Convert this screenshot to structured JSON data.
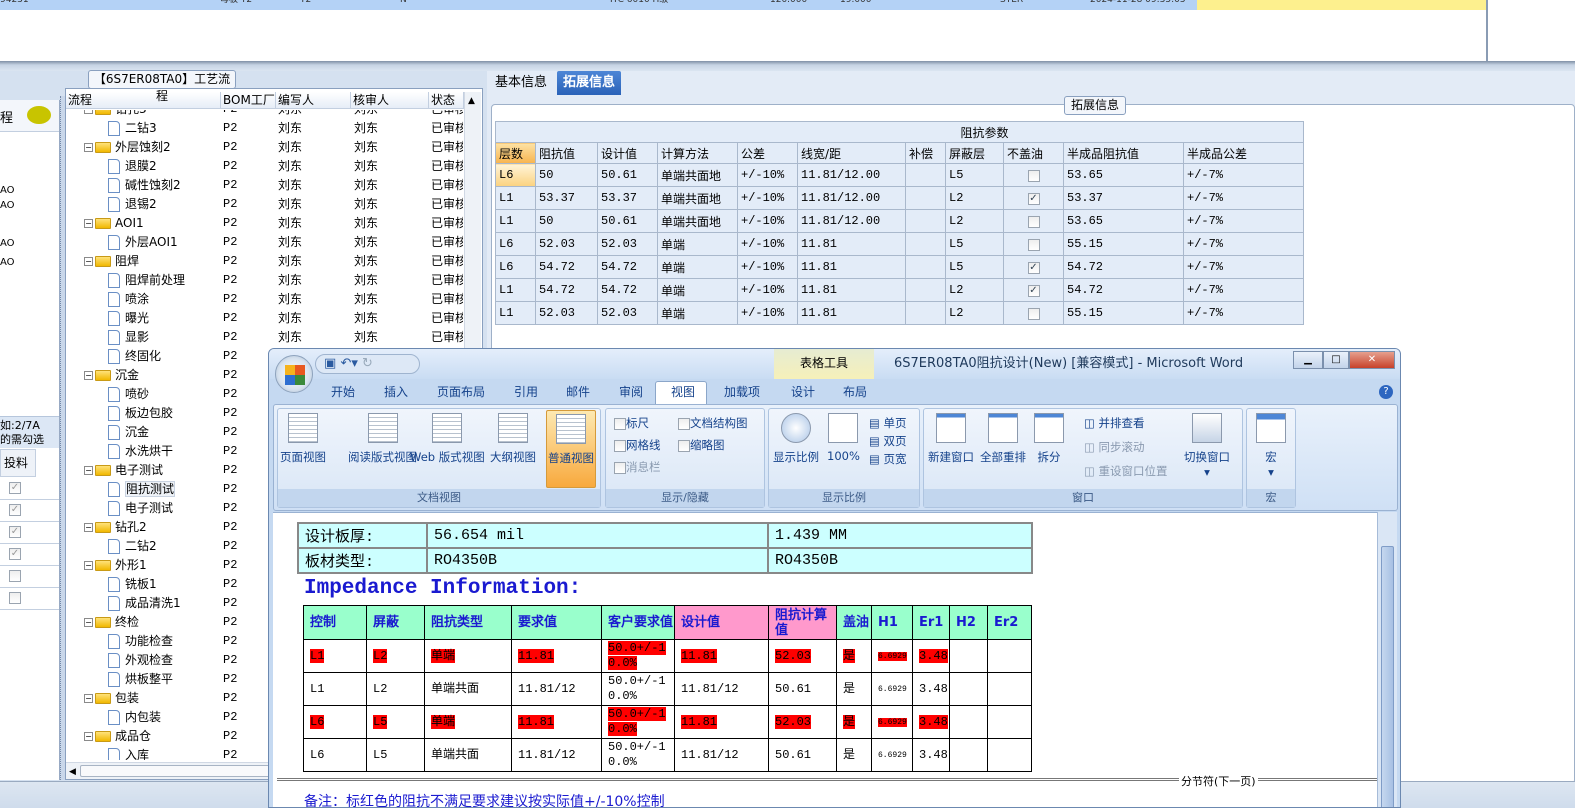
{
  "top_row": {
    "cells": [
      "94231",
      "母板 T2",
      "T2",
      "N",
      "ITC 6010 H级",
      "120.000",
      "19.000",
      "STER",
      "2024-11-28 09:35:05"
    ]
  },
  "left_panel": {
    "title_fragment": "程",
    "items": [
      "AO",
      "AO",
      "AO",
      "AO"
    ],
    "hint_line1": "如:2/7A",
    "hint_line2": "的需勾选",
    "column": "投料",
    "checks": [
      true,
      true,
      true,
      true,
      false,
      false
    ]
  },
  "process_panel": {
    "title": "【6S7ER08TA0】工艺流程",
    "columns": [
      "流程",
      "BOM工厂",
      "编写人",
      "核审人",
      "状态"
    ],
    "rows": [
      {
        "name": "钻孔3",
        "type": "folder",
        "bom": "P2",
        "writer": "刘东",
        "reviewer": "刘东",
        "status": "已审核"
      },
      {
        "name": "二钻3",
        "type": "leaf",
        "bom": "P2",
        "writer": "刘东",
        "reviewer": "刘东",
        "status": "已审核"
      },
      {
        "name": "外层蚀刻2",
        "type": "folder",
        "bom": "P2",
        "writer": "刘东",
        "reviewer": "刘东",
        "status": "已审核"
      },
      {
        "name": "退膜2",
        "type": "leaf",
        "bom": "P2",
        "writer": "刘东",
        "reviewer": "刘东",
        "status": "已审核"
      },
      {
        "name": "碱性蚀刻2",
        "type": "leaf",
        "bom": "P2",
        "writer": "刘东",
        "reviewer": "刘东",
        "status": "已审核"
      },
      {
        "name": "退锡2",
        "type": "leaf",
        "bom": "P2",
        "writer": "刘东",
        "reviewer": "刘东",
        "status": "已审核"
      },
      {
        "name": "AOI1",
        "type": "folder",
        "bom": "P2",
        "writer": "刘东",
        "reviewer": "刘东",
        "status": "已审核"
      },
      {
        "name": "外层AOI1",
        "type": "leaf",
        "bom": "P2",
        "writer": "刘东",
        "reviewer": "刘东",
        "status": "已审核"
      },
      {
        "name": "阻焊",
        "type": "folder",
        "bom": "P2",
        "writer": "刘东",
        "reviewer": "刘东",
        "status": "已审核"
      },
      {
        "name": "阻焊前处理",
        "type": "leaf",
        "bom": "P2",
        "writer": "刘东",
        "reviewer": "刘东",
        "status": "已审核"
      },
      {
        "name": "喷涂",
        "type": "leaf",
        "bom": "P2",
        "writer": "刘东",
        "reviewer": "刘东",
        "status": "已审核"
      },
      {
        "name": "曝光",
        "type": "leaf",
        "bom": "P2",
        "writer": "刘东",
        "reviewer": "刘东",
        "status": "已审核"
      },
      {
        "name": "显影",
        "type": "leaf",
        "bom": "P2",
        "writer": "刘东",
        "reviewer": "刘东",
        "status": "已审核"
      },
      {
        "name": "终固化",
        "type": "leaf",
        "bom": "P2"
      },
      {
        "name": "沉金",
        "type": "folder",
        "bom": "P2"
      },
      {
        "name": "喷砂",
        "type": "leaf",
        "bom": "P2"
      },
      {
        "name": "板边包胶",
        "type": "leaf",
        "bom": "P2"
      },
      {
        "name": "沉金",
        "type": "leaf",
        "bom": "P2"
      },
      {
        "name": "水洗烘干",
        "type": "leaf",
        "bom": "P2"
      },
      {
        "name": "电子测试",
        "type": "folder",
        "bom": "P2"
      },
      {
        "name": "阻抗测试",
        "type": "leaf",
        "bom": "P2",
        "selected": true
      },
      {
        "name": "电子测试",
        "type": "leaf",
        "bom": "P2"
      },
      {
        "name": "钻孔2",
        "type": "folder",
        "bom": "P2"
      },
      {
        "name": "二钻2",
        "type": "leaf",
        "bom": "P2"
      },
      {
        "name": "外形1",
        "type": "folder",
        "bom": "P2"
      },
      {
        "name": "铣板1",
        "type": "leaf",
        "bom": "P2"
      },
      {
        "name": "成品清洗1",
        "type": "leaf",
        "bom": "P2"
      },
      {
        "name": "终检",
        "type": "folder",
        "bom": "P2"
      },
      {
        "name": "功能检查",
        "type": "leaf",
        "bom": "P2"
      },
      {
        "name": "外观检查",
        "type": "leaf",
        "bom": "P2"
      },
      {
        "name": "烘板整平",
        "type": "leaf",
        "bom": "P2"
      },
      {
        "name": "包装",
        "type": "folder",
        "bom": "P2"
      },
      {
        "name": "内包装",
        "type": "leaf",
        "bom": "P2"
      },
      {
        "name": "成品仓",
        "type": "folder",
        "bom": "P2"
      },
      {
        "name": "入库",
        "type": "leaf",
        "bom": "P2"
      }
    ]
  },
  "right_panel": {
    "tabs": [
      "基本信息",
      "拓展信息"
    ],
    "active_tab": "拓展信息",
    "group_title": "拓展信息",
    "table": {
      "group_header": "阻抗参数",
      "columns": [
        "层数",
        "阻抗值",
        "设计值",
        "计算方法",
        "公差",
        "线宽/距",
        "补偿",
        "屏蔽层",
        "不盖油",
        "半成品阻抗值",
        "半成品公差"
      ],
      "rows": [
        [
          "L6",
          "50",
          "50.61",
          "单端共面地",
          "+/-10%",
          "11.81/12.00",
          "",
          "L5",
          false,
          "53.65",
          "+/-7%"
        ],
        [
          "L1",
          "53.37",
          "53.37",
          "单端共面地",
          "+/-10%",
          "11.81/12.00",
          "",
          "L2",
          true,
          "53.37",
          "+/-7%"
        ],
        [
          "L1",
          "50",
          "50.61",
          "单端共面地",
          "+/-10%",
          "11.81/12.00",
          "",
          "L2",
          false,
          "53.65",
          "+/-7%"
        ],
        [
          "L6",
          "52.03",
          "52.03",
          "单端",
          "+/-10%",
          "11.81",
          "",
          "L5",
          false,
          "55.15",
          "+/-7%"
        ],
        [
          "L6",
          "54.72",
          "54.72",
          "单端",
          "+/-10%",
          "11.81",
          "",
          "L5",
          true,
          "54.72",
          "+/-7%"
        ],
        [
          "L1",
          "54.72",
          "54.72",
          "单端",
          "+/-10%",
          "11.81",
          "",
          "L2",
          true,
          "54.72",
          "+/-7%"
        ],
        [
          "L1",
          "52.03",
          "52.03",
          "单端",
          "+/-10%",
          "11.81",
          "",
          "L2",
          false,
          "55.15",
          "+/-7%"
        ]
      ]
    }
  },
  "word": {
    "title": "6S7ER08TA0阻抗设计(New) [兼容模式] - Microsoft Word",
    "context_tab": "表格工具",
    "tabs": [
      "开始",
      "插入",
      "页面布局",
      "引用",
      "邮件",
      "审阅",
      "视图",
      "加载项",
      "设计",
      "布局"
    ],
    "active_tab": "视图",
    "ribbon": {
      "doc_views": {
        "label": "文档视图",
        "buttons": [
          "页面视图",
          "阅读版式视图",
          "Web 版式视图",
          "大纲视图",
          "普通视图"
        ],
        "active": "普通视图"
      },
      "show_hide": {
        "label": "显示/隐藏",
        "checks": [
          {
            "label": "标尺",
            "checked": false
          },
          {
            "label": "文档结构图",
            "checked": false
          },
          {
            "label": "网格线",
            "checked": false
          },
          {
            "label": "缩略图",
            "checked": false
          },
          {
            "label": "消息栏",
            "checked": false,
            "disabled": true
          }
        ]
      },
      "zoom": {
        "label": "显示比例",
        "buttons": [
          "显示比例",
          "100%"
        ],
        "small": [
          "单页",
          "双页",
          "页宽"
        ]
      },
      "window": {
        "label": "窗口",
        "buttons": [
          "新建窗口",
          "全部重排",
          "拆分"
        ],
        "small": [
          "并排查看",
          "同步滚动",
          "重设窗口位置"
        ],
        "switch": "切换窗口"
      },
      "macro": {
        "label": "宏",
        "button": "宏"
      }
    },
    "doc": {
      "board": [
        [
          "设计板厚:",
          "56.654 mil",
          "1.439 MM"
        ],
        [
          "板材类型:",
          "RO4350B",
          "RO4350B"
        ]
      ],
      "heading": "Impedance Information:",
      "columns": [
        "控制",
        "屏蔽",
        "阻抗类型",
        "要求值",
        "客户要求值",
        "设计值",
        "阻抗计算值",
        "盖油",
        "H1",
        "Er1",
        "H2",
        "Er2"
      ],
      "rows": [
        {
          "cells": [
            "L1",
            "L2",
            "单端",
            "11.81",
            "50.0+/-10.0%",
            "11.81",
            "52.03",
            "是",
            "6.6929",
            "3.48",
            "",
            ""
          ],
          "flagged": true
        },
        {
          "cells": [
            "L1",
            "L2",
            "单端共面",
            "11.81/12",
            "50.0+/-10.0%",
            "11.81/12",
            "50.61",
            "是",
            "6.6929",
            "3.48",
            "",
            ""
          ],
          "flagged": false
        },
        {
          "cells": [
            "L6",
            "L5",
            "单端",
            "11.81",
            "50.0+/-10.0%",
            "11.81",
            "52.03",
            "是",
            "6.6929",
            "3.48",
            "",
            ""
          ],
          "flagged": true
        },
        {
          "cells": [
            "L6",
            "L5",
            "单端共面",
            "11.81/12",
            "50.0+/-10.0%",
            "11.81/12",
            "50.61",
            "是",
            "6.6929",
            "3.48",
            "",
            ""
          ],
          "flagged": false
        }
      ],
      "section_break": "分节符(下一页)",
      "note": "备注：标红色的阻抗不满足要求建议按实际值+/-10%控制"
    },
    "colors": {
      "flag": "#ff0000",
      "header_green": "#99ffcc",
      "header_pink": "#ff99cc",
      "board_cyan": "#ccffff",
      "heading_blue": "#1a1ad0"
    }
  }
}
